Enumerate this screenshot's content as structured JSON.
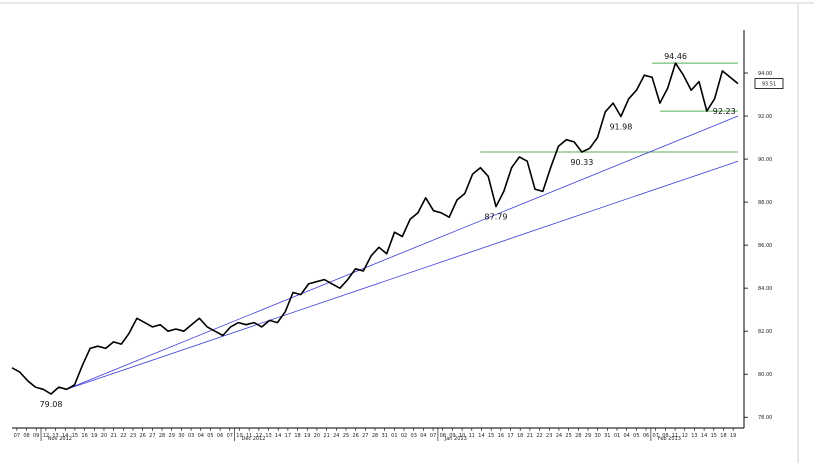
{
  "chart_data": {
    "type": "line",
    "title": "",
    "xlabel": "",
    "ylabel": "",
    "ylim": [
      77.5,
      96.0
    ],
    "grid": false,
    "colors": {
      "price": "#000000",
      "trendline": "#3b3bd6",
      "level": "#55b055",
      "last_price_box": "#000000"
    },
    "y_ticks": [
      "78.00",
      "80.00",
      "82.00",
      "84.00",
      "86.00",
      "88.00",
      "90.00",
      "92.00",
      "94.00"
    ],
    "last_price": "93.51",
    "x_day_labels": [
      "07",
      "08",
      "09",
      "12",
      "13",
      "14",
      "15",
      "16",
      "19",
      "20",
      "21",
      "22",
      "23",
      "26",
      "27",
      "28",
      "29",
      "30",
      "03",
      "04",
      "05",
      "06",
      "07",
      "10",
      "11",
      "12",
      "13",
      "14",
      "17",
      "18",
      "19",
      "20",
      "21",
      "24",
      "25",
      "26",
      "27",
      "28",
      "31",
      "01",
      "02",
      "03",
      "04",
      "07",
      "08",
      "09",
      "10",
      "11",
      "14",
      "15",
      "16",
      "17",
      "18",
      "21",
      "22",
      "23",
      "24",
      "25",
      "28",
      "29",
      "30",
      "31",
      "01",
      "04",
      "05",
      "06",
      "07",
      "08",
      "11",
      "12",
      "13",
      "14",
      "15",
      "18",
      "19"
    ],
    "month_labels": [
      {
        "label": "Nov 2012",
        "index": 3
      },
      {
        "label": "Dec 2012",
        "index": 23
      },
      {
        "label": "Jan 2013",
        "index": 44
      },
      {
        "label": "Feb 2013",
        "index": 66
      }
    ],
    "series": [
      {
        "points": [
          [
            0,
            80.3
          ],
          [
            1,
            80.1
          ],
          [
            2,
            79.7
          ],
          [
            3,
            79.4
          ],
          [
            4,
            79.3
          ],
          [
            5,
            79.08
          ],
          [
            6,
            79.4
          ],
          [
            7,
            79.3
          ],
          [
            8,
            79.5
          ],
          [
            9,
            80.4
          ],
          [
            10,
            81.2
          ],
          [
            11,
            81.3
          ],
          [
            12,
            81.2
          ],
          [
            13,
            81.5
          ],
          [
            14,
            81.4
          ],
          [
            15,
            81.9
          ],
          [
            16,
            82.6
          ],
          [
            17,
            82.4
          ],
          [
            18,
            82.2
          ],
          [
            19,
            82.3
          ],
          [
            20,
            82.0
          ],
          [
            21,
            82.1
          ],
          [
            22,
            82.0
          ],
          [
            23,
            82.3
          ],
          [
            24,
            82.6
          ],
          [
            25,
            82.2
          ],
          [
            26,
            82.0
          ],
          [
            27,
            81.8
          ],
          [
            28,
            82.2
          ],
          [
            29,
            82.4
          ],
          [
            30,
            82.3
          ],
          [
            31,
            82.4
          ],
          [
            32,
            82.2
          ],
          [
            33,
            82.5
          ],
          [
            34,
            82.4
          ],
          [
            35,
            82.9
          ],
          [
            36,
            83.8
          ],
          [
            37,
            83.7
          ],
          [
            38,
            84.2
          ],
          [
            39,
            84.3
          ],
          [
            40,
            84.4
          ],
          [
            41,
            84.2
          ],
          [
            42,
            84.0
          ],
          [
            43,
            84.4
          ],
          [
            44,
            84.9
          ],
          [
            45,
            84.8
          ],
          [
            46,
            85.5
          ],
          [
            47,
            85.9
          ],
          [
            48,
            85.6
          ],
          [
            49,
            86.6
          ],
          [
            50,
            86.4
          ],
          [
            51,
            87.2
          ],
          [
            52,
            87.5
          ],
          [
            53,
            88.2
          ],
          [
            54,
            87.6
          ],
          [
            55,
            87.5
          ],
          [
            56,
            87.3
          ],
          [
            57,
            88.1
          ],
          [
            58,
            88.4
          ],
          [
            59,
            89.3
          ],
          [
            60,
            89.6
          ],
          [
            61,
            89.2
          ],
          [
            62,
            87.79
          ],
          [
            63,
            88.5
          ],
          [
            64,
            89.6
          ],
          [
            65,
            90.1
          ],
          [
            66,
            89.9
          ],
          [
            67,
            88.6
          ],
          [
            68,
            88.5
          ],
          [
            69,
            89.6
          ],
          [
            70,
            90.6
          ],
          [
            71,
            90.9
          ],
          [
            72,
            90.8
          ],
          [
            73,
            90.33
          ],
          [
            74,
            90.5
          ],
          [
            75,
            91.0
          ],
          [
            76,
            92.2
          ],
          [
            77,
            92.6
          ],
          [
            78,
            91.98
          ],
          [
            79,
            92.8
          ],
          [
            80,
            93.2
          ],
          [
            81,
            93.9
          ],
          [
            82,
            93.8
          ],
          [
            83,
            92.6
          ],
          [
            84,
            93.3
          ],
          [
            85,
            94.46
          ],
          [
            86,
            93.9
          ],
          [
            87,
            93.2
          ],
          [
            88,
            93.6
          ],
          [
            89,
            92.23
          ],
          [
            90,
            92.8
          ],
          [
            91,
            94.1
          ],
          [
            92,
            93.8
          ],
          [
            93,
            93.51
          ]
        ]
      }
    ],
    "x_extent": [
      0,
      93
    ],
    "trendlines": [
      {
        "name": "upper-trendline",
        "from": [
          7,
          79.3
        ],
        "to": [
          93,
          92.0
        ]
      },
      {
        "name": "lower-trendline",
        "from": [
          7,
          79.3
        ],
        "to": [
          93,
          89.9
        ]
      }
    ],
    "levels": [
      {
        "name": "level-94-46",
        "value": 94.46,
        "from": 82,
        "to": 93
      },
      {
        "name": "level-92-23",
        "value": 92.23,
        "from": 83,
        "to": 93
      },
      {
        "name": "level-90-33",
        "value": 90.33,
        "from": 60,
        "to": 93
      }
    ],
    "annotations": [
      {
        "text": "79.08",
        "x": 5,
        "y": 79.08,
        "pos": "below"
      },
      {
        "text": "87.79",
        "x": 62,
        "y": 87.79,
        "pos": "below"
      },
      {
        "text": "90.33",
        "x": 73,
        "y": 90.33,
        "pos": "below"
      },
      {
        "text": "91.98",
        "x": 78,
        "y": 91.98,
        "pos": "below"
      },
      {
        "text": "92.23",
        "x": 89,
        "y": 92.23,
        "pos": "right"
      },
      {
        "text": "94.46",
        "x": 85,
        "y": 94.46,
        "pos": "above"
      }
    ]
  }
}
